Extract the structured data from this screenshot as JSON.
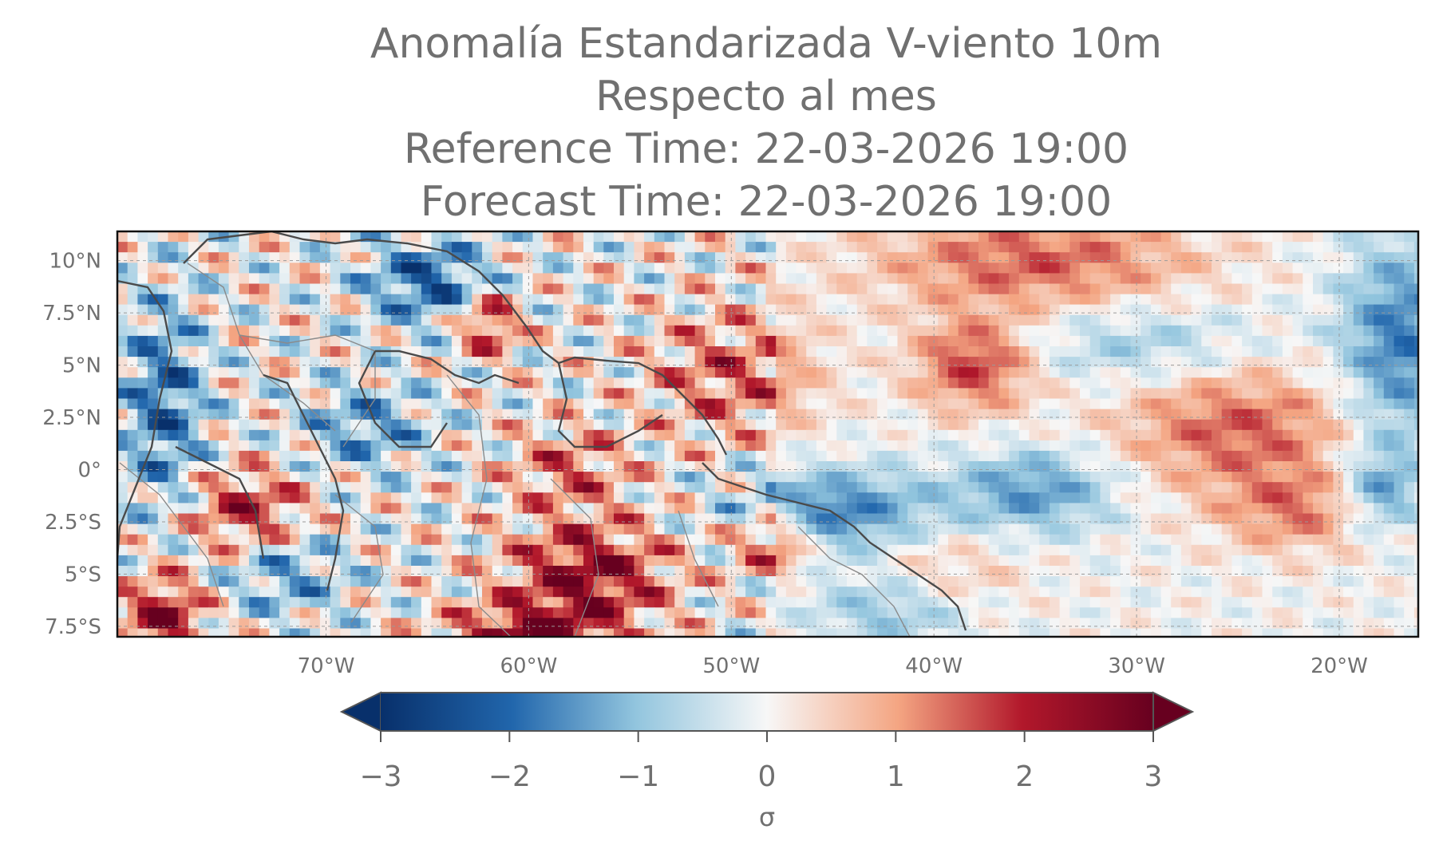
{
  "title": {
    "line1": "Anomalía Estandarizada V-viento 10m",
    "line2": "Respecto al mes",
    "line3": "Reference Time: 22-03-2026 19:00",
    "line4": "Forecast Time: 22-03-2026 19:00"
  },
  "map": {
    "lat_labels": [
      "10°N",
      "7.5°N",
      "5°N",
      "2.5°N",
      "0°",
      "2.5°S",
      "5°S",
      "7.5°S"
    ],
    "lon_labels": [
      "70°W",
      "60°W",
      "50°W",
      "40°W",
      "30°W",
      "20°W"
    ],
    "lon_range": [
      -80,
      -16
    ],
    "lat_range": [
      -8,
      12
    ],
    "colormap": "RdBu_r",
    "colors": {
      "neg_max": "#08306b",
      "zero": "#f7f7f7",
      "pos_max": "#67001f",
      "coast": "#4a4a4a",
      "border": "#8a8a8a"
    }
  },
  "colorbar": {
    "ticks": [
      "−3",
      "−2",
      "−1",
      "0",
      "1",
      "2",
      "3"
    ],
    "label": "σ",
    "range": [
      -3,
      3
    ],
    "extend": "both"
  }
}
